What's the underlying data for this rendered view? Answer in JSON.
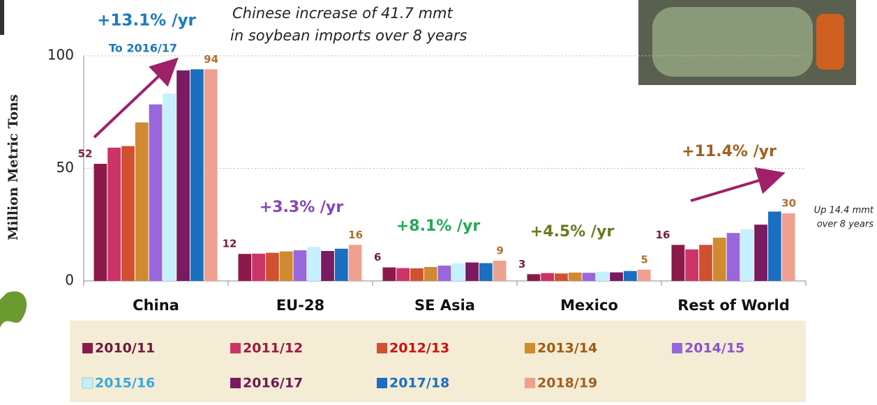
{
  "chart_data": {
    "type": "bar",
    "y_label": "Million Metric Tons",
    "categories": [
      "China",
      "EU-28",
      "SE Asia",
      "Mexico",
      "Rest of World"
    ],
    "ylim": [
      0,
      100
    ],
    "yticks": [
      0,
      50,
      100
    ],
    "grid": true,
    "series": [
      {
        "name": "2010/11",
        "color": "#8b1a4a",
        "legend_color": "#6a1a3a",
        "label_color": "#7a1a40",
        "show_labels": true,
        "values": [
          52,
          12,
          6,
          3,
          16
        ]
      },
      {
        "name": "2011/12",
        "color": "#cc3366",
        "legend_color": "#9a1a3a",
        "values": [
          59.2,
          12.1,
          5.7,
          3.5,
          14
        ]
      },
      {
        "name": "2012/13",
        "color": "#d05030",
        "legend_color": "#cc1010",
        "values": [
          59.9,
          12.5,
          5.6,
          3.3,
          16
        ]
      },
      {
        "name": "2013/14",
        "color": "#d08a30",
        "legend_color": "#a05a10",
        "values": [
          70.4,
          13.1,
          6.2,
          3.7,
          19.2
        ]
      },
      {
        "name": "2014/15",
        "color": "#9966dd",
        "legend_color": "#8855cc",
        "values": [
          78.4,
          13.6,
          6.8,
          3.6,
          21.3
        ]
      },
      {
        "name": "2015/16",
        "color": "#c4f0ff",
        "legend_color": "#33aadd",
        "values": [
          83.2,
          15.1,
          7.8,
          4.1,
          23
        ]
      },
      {
        "name": "2016/17",
        "color": "#7a1a60",
        "legend_color": "#6a1a50",
        "values": [
          93.5,
          13.3,
          8.2,
          3.8,
          25
        ]
      },
      {
        "name": "2017/18",
        "color": "#1a6fc0",
        "legend_color": "#1a6fc0",
        "values": [
          94,
          14.3,
          7.9,
          4.4,
          30.8
        ]
      },
      {
        "name": "2018/19",
        "color": "#f0a090",
        "legend_color": "#a06020",
        "label_color": "#b07030",
        "show_labels": true,
        "values": [
          94,
          16,
          9,
          5,
          30
        ]
      }
    ],
    "annotations": [
      {
        "text": "+13.1% /yr",
        "color": "#1a7ac0"
      },
      {
        "text": "To 2016/17",
        "color": "#1a7ac0"
      },
      {
        "text": "Chinese increase of 41.7 mmt",
        "color": "#222"
      },
      {
        "text": "in soybean imports over 8 years",
        "color": "#222"
      },
      {
        "text": "+3.3% /yr",
        "color": "#8844bb"
      },
      {
        "text": "+8.1% /yr",
        "color": "#22aa55"
      },
      {
        "text": "+4.5% /yr",
        "color": "#6a7a20"
      },
      {
        "text": "+11.4% /yr",
        "color": "#a06020"
      },
      {
        "text": "Up 14.4 mmt",
        "color": "#222"
      },
      {
        "text": "over 8 years",
        "color": "#222"
      }
    ]
  }
}
